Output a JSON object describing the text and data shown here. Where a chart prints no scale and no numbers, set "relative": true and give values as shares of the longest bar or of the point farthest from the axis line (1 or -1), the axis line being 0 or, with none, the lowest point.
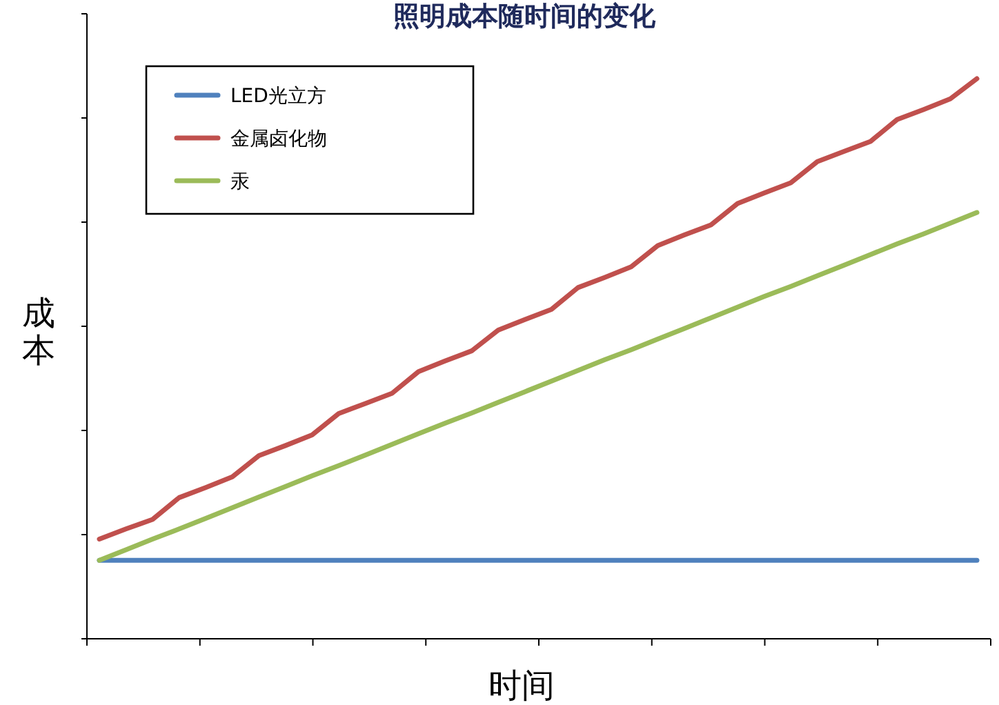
{
  "chart_data": {
    "type": "line",
    "title": "照明成本随时间的变化",
    "xlabel": "时间",
    "ylabel": "成本",
    "relative": true,
    "legend": "top left",
    "line_style": "solid",
    "marker": "none",
    "categories": [
      null,
      null,
      null,
      null,
      null,
      null,
      null,
      null,
      null,
      null,
      null,
      null,
      null,
      null,
      null,
      null,
      null,
      null,
      null,
      null,
      null,
      null,
      null,
      null,
      null,
      null,
      null,
      null,
      null,
      null,
      null,
      null,
      null,
      null
    ],
    "series": [
      {
        "name": "LED光立方",
        "color": "#4f81bd",
        "values": [
          0.14,
          0.14,
          0.14,
          0.14,
          0.14,
          0.14,
          0.14,
          0.14,
          0.14,
          0.14,
          0.14,
          0.14,
          0.14,
          0.14,
          0.14,
          0.14,
          0.14,
          0.14,
          0.14,
          0.14,
          0.14,
          0.14,
          0.14,
          0.14,
          0.14,
          0.14,
          0.14,
          0.14,
          0.14,
          0.14,
          0.14,
          0.14,
          0.14,
          0.14
        ]
      },
      {
        "name": "金属卤化物",
        "color": "#c0504d",
        "values": [
          0.178,
          0.196,
          0.213,
          0.252,
          0.27,
          0.289,
          0.327,
          0.345,
          0.364,
          0.402,
          0.42,
          0.438,
          0.477,
          0.496,
          0.514,
          0.551,
          0.57,
          0.588,
          0.627,
          0.645,
          0.664,
          0.702,
          0.721,
          0.739,
          0.777,
          0.796,
          0.814,
          0.852,
          0.87,
          0.888,
          0.927,
          0.945,
          0.964,
          1
        ]
      },
      {
        "name": "汞",
        "color": "#9bbb59",
        "values": [
          0.14,
          0.159,
          0.178,
          0.196,
          0.215,
          0.234,
          0.253,
          0.272,
          0.291,
          0.309,
          0.328,
          0.347,
          0.366,
          0.385,
          0.403,
          0.422,
          0.441,
          0.46,
          0.479,
          0.498,
          0.516,
          0.535,
          0.554,
          0.573,
          0.592,
          0.611,
          0.629,
          0.648,
          0.667,
          0.686,
          0.705,
          0.723,
          0.742,
          0.761
        ]
      }
    ]
  }
}
